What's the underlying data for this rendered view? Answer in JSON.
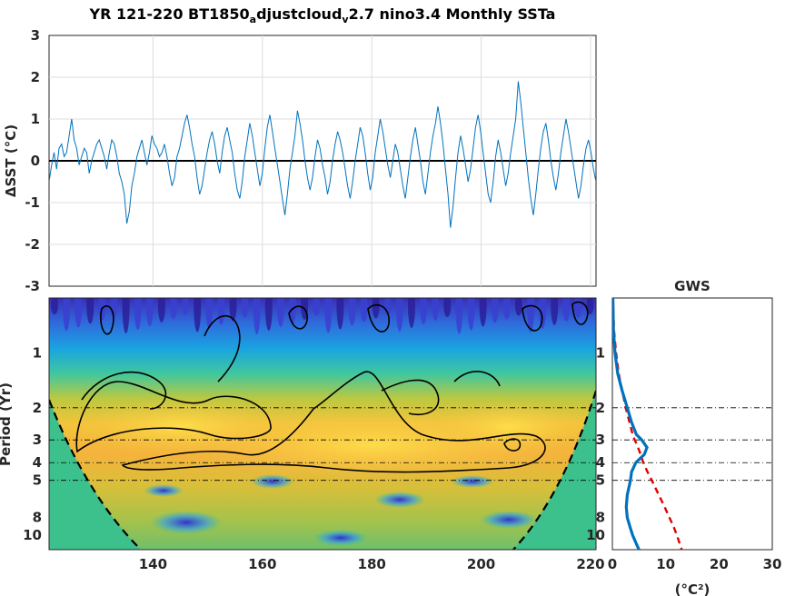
{
  "title": {
    "prefix": "YR 121-220 BT1850",
    "sub1": "a",
    "mid": "djustcloud",
    "sub2": "v",
    "suffix": "2.7 nino3.4 Monthly SSTa"
  },
  "chart_data": [
    {
      "type": "line",
      "name": "timeseries",
      "ylabel": "ΔSST (°C)",
      "xlim": [
        121,
        221
      ],
      "ylim": [
        -3,
        3
      ],
      "yticks": [
        "3",
        "2",
        "1",
        "0",
        "-1",
        "-2",
        "-3"
      ],
      "grid": true,
      "x_start": 121,
      "y_monthly": [
        -0.5,
        -0.1,
        0.2,
        -0.2,
        0.3,
        0.4,
        0.1,
        0.2,
        0.6,
        1.0,
        0.5,
        0.3,
        -0.1,
        0.1,
        0.3,
        0.2,
        -0.3,
        0.0,
        0.2,
        0.4,
        0.5,
        0.3,
        0.1,
        -0.2,
        0.2,
        0.5,
        0.4,
        0.1,
        -0.3,
        -0.5,
        -0.8,
        -1.5,
        -1.2,
        -0.6,
        -0.3,
        0.1,
        0.3,
        0.5,
        0.2,
        -0.1,
        0.2,
        0.6,
        0.4,
        0.3,
        0.1,
        0.2,
        0.4,
        0.1,
        -0.3,
        -0.6,
        -0.4,
        0.1,
        0.3,
        0.6,
        0.9,
        1.1,
        0.8,
        0.4,
        0.1,
        -0.4,
        -0.8,
        -0.6,
        -0.2,
        0.2,
        0.5,
        0.7,
        0.4,
        0.0,
        -0.3,
        0.2,
        0.6,
        0.8,
        0.5,
        0.2,
        -0.3,
        -0.7,
        -0.9,
        -0.5,
        0.1,
        0.5,
        0.9,
        0.6,
        0.2,
        -0.2,
        -0.6,
        -0.3,
        0.3,
        0.8,
        1.1,
        0.7,
        0.3,
        -0.1,
        -0.5,
        -0.9,
        -1.3,
        -0.8,
        -0.2,
        0.2,
        0.6,
        1.2,
        0.9,
        0.5,
        0.0,
        -0.4,
        -0.7,
        -0.4,
        0.1,
        0.5,
        0.3,
        -0.1,
        -0.4,
        -0.8,
        -0.5,
        0.0,
        0.4,
        0.7,
        0.5,
        0.2,
        -0.2,
        -0.6,
        -0.9,
        -0.5,
        0.0,
        0.4,
        0.8,
        0.6,
        0.2,
        -0.3,
        -0.7,
        -0.4,
        0.2,
        0.6,
        1.0,
        0.7,
        0.3,
        -0.1,
        -0.4,
        0.0,
        0.4,
        0.2,
        -0.2,
        -0.6,
        -0.9,
        -0.4,
        0.1,
        0.5,
        0.8,
        0.4,
        0.0,
        -0.5,
        -0.8,
        -0.3,
        0.2,
        0.6,
        0.9,
        1.3,
        0.9,
        0.4,
        -0.2,
        -0.8,
        -1.6,
        -1.1,
        -0.4,
        0.2,
        0.6,
        0.3,
        -0.1,
        -0.5,
        -0.2,
        0.3,
        0.8,
        1.1,
        0.7,
        0.2,
        -0.3,
        -0.8,
        -1.0,
        -0.5,
        0.1,
        0.5,
        0.2,
        -0.2,
        -0.6,
        -0.3,
        0.2,
        0.6,
        1.0,
        1.9,
        1.4,
        0.8,
        0.2,
        -0.4,
        -0.9,
        -1.3,
        -0.8,
        -0.2,
        0.3,
        0.7,
        0.9,
        0.5,
        0.0,
        -0.4,
        -0.7,
        -0.3,
        0.2,
        0.6,
        1.0,
        0.7,
        0.3,
        -0.1,
        -0.5,
        -0.9,
        -0.6,
        -0.1,
        0.3,
        0.5,
        0.2,
        -0.2,
        -0.5
      ]
    },
    {
      "type": "heatmap",
      "name": "wavelet_power",
      "ylabel": "Period (Yr)",
      "xlim": [
        121,
        221
      ],
      "xticks": [
        "140",
        "160",
        "180",
        "200",
        "220"
      ],
      "yticks": [
        "1",
        "2",
        "3",
        "4",
        "5",
        "8",
        "10"
      ],
      "period_log_scale": true
    },
    {
      "type": "line",
      "name": "global_wavelet_spectrum",
      "title": "GWS",
      "xlabel": "(°C²)",
      "xlim": [
        0,
        30
      ],
      "xticks": [
        "0",
        "10",
        "20",
        "30"
      ],
      "period": [
        0.5,
        0.75,
        1.0,
        1.3,
        1.6,
        2.0,
        2.4,
        2.8,
        3.0,
        3.3,
        3.6,
        4.0,
        4.5,
        5.0,
        6.0,
        7.0,
        8.0,
        9.0,
        10.0,
        11.5,
        12.0
      ],
      "power": [
        0.1,
        0.2,
        0.5,
        1.0,
        1.8,
        2.8,
        3.6,
        4.5,
        5.5,
        6.5,
        6.0,
        4.4,
        3.6,
        3.4,
        2.8,
        2.6,
        2.8,
        3.3,
        3.8,
        4.7,
        5.0
      ],
      "significance": [
        0.1,
        0.3,
        0.7,
        1.2,
        1.8,
        2.5,
        3.2,
        3.8,
        4.2,
        4.8,
        5.3,
        5.8,
        6.6,
        7.4,
        8.7,
        9.8,
        10.7,
        11.5,
        12.1,
        12.8,
        13.0
      ],
      "line_color": "#0072bd",
      "significance_color": "#e00000"
    }
  ]
}
